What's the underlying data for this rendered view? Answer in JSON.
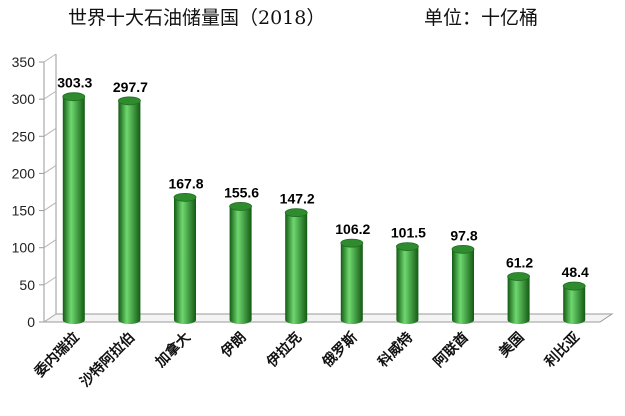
{
  "chart_data": {
    "type": "bar",
    "title": "世界十大石油储量国（2018）",
    "unit_label": "单位：十亿桶",
    "categories": [
      "委内瑞拉",
      "沙特阿拉伯",
      "加拿大",
      "伊朗",
      "伊拉克",
      "俄罗斯",
      "科威特",
      "阿联酋",
      "美国",
      "利比亚"
    ],
    "values": [
      303.3,
      297.7,
      167.8,
      155.6,
      147.2,
      106.2,
      101.5,
      97.8,
      61.2,
      48.4
    ],
    "value_labels": [
      "303.3",
      "297.7",
      "167.8",
      "155.6",
      "147.2",
      "106.2",
      "101.5",
      "97.8",
      "61.2",
      "48.4"
    ],
    "ylim": [
      0,
      350
    ],
    "yticks": [
      0,
      50,
      100,
      150,
      200,
      250,
      300,
      350
    ],
    "ytick_labels": [
      "0",
      "50",
      "100",
      "150",
      "200",
      "250",
      "300",
      "350"
    ],
    "xlabel": "",
    "ylabel": "",
    "grid": false,
    "legend": "none",
    "bar_color": "#2e8b2e",
    "bar_highlight": "#6fd86f",
    "bar_shadow": "#135a13"
  }
}
